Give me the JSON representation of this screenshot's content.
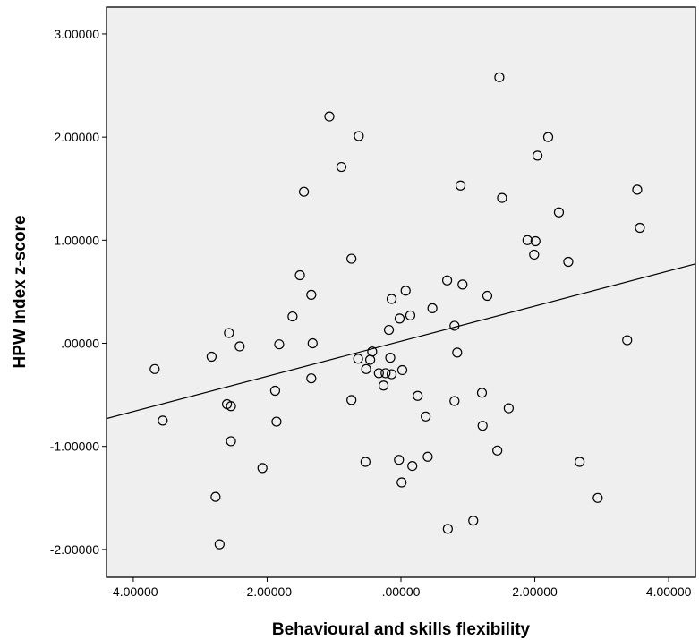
{
  "chart_data": {
    "type": "scatter",
    "xlabel": "Behavioural and skills flexibility",
    "ylabel": "HPW Index z-score",
    "xlim": [
      -4.4,
      4.4
    ],
    "ylim": [
      -2.27,
      3.26
    ],
    "x_ticks": [
      {
        "value": -4,
        "label": "-4.00000"
      },
      {
        "value": -2,
        "label": "-2.00000"
      },
      {
        "value": 0,
        "label": ".00000"
      },
      {
        "value": 2,
        "label": "2.00000"
      },
      {
        "value": 4,
        "label": "4.00000"
      }
    ],
    "y_ticks": [
      {
        "value": -2,
        "label": "-2.00000"
      },
      {
        "value": -1,
        "label": "-1.00000"
      },
      {
        "value": 0,
        "label": ".00000"
      },
      {
        "value": 1,
        "label": "1.00000"
      },
      {
        "value": 2,
        "label": "2.00000"
      },
      {
        "value": 3,
        "label": "3.00000"
      }
    ],
    "grid": false,
    "plot_background": "#efefef",
    "marker": "open-circle",
    "fit_line": {
      "x": [
        -4.4,
        4.4
      ],
      "y": [
        -0.73,
        0.77
      ]
    },
    "points": [
      {
        "x": 1.47,
        "y": 2.58
      },
      {
        "x": -1.07,
        "y": 2.2
      },
      {
        "x": -0.63,
        "y": 2.01
      },
      {
        "x": 2.2,
        "y": 2.0
      },
      {
        "x": 2.04,
        "y": 1.82
      },
      {
        "x": -0.89,
        "y": 1.71
      },
      {
        "x": 0.89,
        "y": 1.53
      },
      {
        "x": -1.45,
        "y": 1.47
      },
      {
        "x": 1.51,
        "y": 1.41
      },
      {
        "x": 3.53,
        "y": 1.49
      },
      {
        "x": 2.36,
        "y": 1.27
      },
      {
        "x": 3.57,
        "y": 1.12
      },
      {
        "x": 1.89,
        "y": 1.0
      },
      {
        "x": 2.01,
        "y": 0.99
      },
      {
        "x": 1.99,
        "y": 0.86
      },
      {
        "x": -0.74,
        "y": 0.82
      },
      {
        "x": 2.5,
        "y": 0.79
      },
      {
        "x": -1.51,
        "y": 0.66
      },
      {
        "x": 0.69,
        "y": 0.61
      },
      {
        "x": 0.92,
        "y": 0.57
      },
      {
        "x": 0.07,
        "y": 0.51
      },
      {
        "x": -1.34,
        "y": 0.47
      },
      {
        "x": 1.29,
        "y": 0.46
      },
      {
        "x": -0.14,
        "y": 0.43
      },
      {
        "x": 0.47,
        "y": 0.34
      },
      {
        "x": 0.14,
        "y": 0.27
      },
      {
        "x": -1.62,
        "y": 0.26
      },
      {
        "x": -0.02,
        "y": 0.24
      },
      {
        "x": 0.8,
        "y": 0.17
      },
      {
        "x": -0.18,
        "y": 0.13
      },
      {
        "x": -2.57,
        "y": 0.1
      },
      {
        "x": -1.32,
        "y": 0.0
      },
      {
        "x": -1.82,
        "y": -0.01
      },
      {
        "x": -2.41,
        "y": -0.03
      },
      {
        "x": 3.38,
        "y": 0.03
      },
      {
        "x": -0.43,
        "y": -0.08
      },
      {
        "x": 0.84,
        "y": -0.09
      },
      {
        "x": -2.83,
        "y": -0.13
      },
      {
        "x": -0.16,
        "y": -0.14
      },
      {
        "x": -0.64,
        "y": -0.15
      },
      {
        "x": -0.46,
        "y": -0.16
      },
      {
        "x": -3.68,
        "y": -0.25
      },
      {
        "x": -0.52,
        "y": -0.25
      },
      {
        "x": 0.02,
        "y": -0.26
      },
      {
        "x": -0.33,
        "y": -0.29
      },
      {
        "x": -0.23,
        "y": -0.29
      },
      {
        "x": -0.14,
        "y": -0.3
      },
      {
        "x": -1.34,
        "y": -0.34
      },
      {
        "x": -0.26,
        "y": -0.41
      },
      {
        "x": -1.88,
        "y": -0.46
      },
      {
        "x": 1.21,
        "y": -0.48
      },
      {
        "x": 0.25,
        "y": -0.51
      },
      {
        "x": -0.74,
        "y": -0.55
      },
      {
        "x": 0.8,
        "y": -0.56
      },
      {
        "x": -2.6,
        "y": -0.59
      },
      {
        "x": -2.54,
        "y": -0.61
      },
      {
        "x": 1.61,
        "y": -0.63
      },
      {
        "x": 0.37,
        "y": -0.71
      },
      {
        "x": -3.56,
        "y": -0.75
      },
      {
        "x": -1.86,
        "y": -0.76
      },
      {
        "x": 1.22,
        "y": -0.8
      },
      {
        "x": -2.54,
        "y": -0.95
      },
      {
        "x": 1.44,
        "y": -1.04
      },
      {
        "x": 0.4,
        "y": -1.1
      },
      {
        "x": -0.03,
        "y": -1.13
      },
      {
        "x": -0.53,
        "y": -1.15
      },
      {
        "x": 2.67,
        "y": -1.15
      },
      {
        "x": 0.17,
        "y": -1.19
      },
      {
        "x": -2.07,
        "y": -1.21
      },
      {
        "x": 0.01,
        "y": -1.35
      },
      {
        "x": -2.77,
        "y": -1.49
      },
      {
        "x": 2.94,
        "y": -1.5
      },
      {
        "x": 1.08,
        "y": -1.72
      },
      {
        "x": 0.7,
        "y": -1.8
      },
      {
        "x": -2.71,
        "y": -1.95
      }
    ]
  }
}
